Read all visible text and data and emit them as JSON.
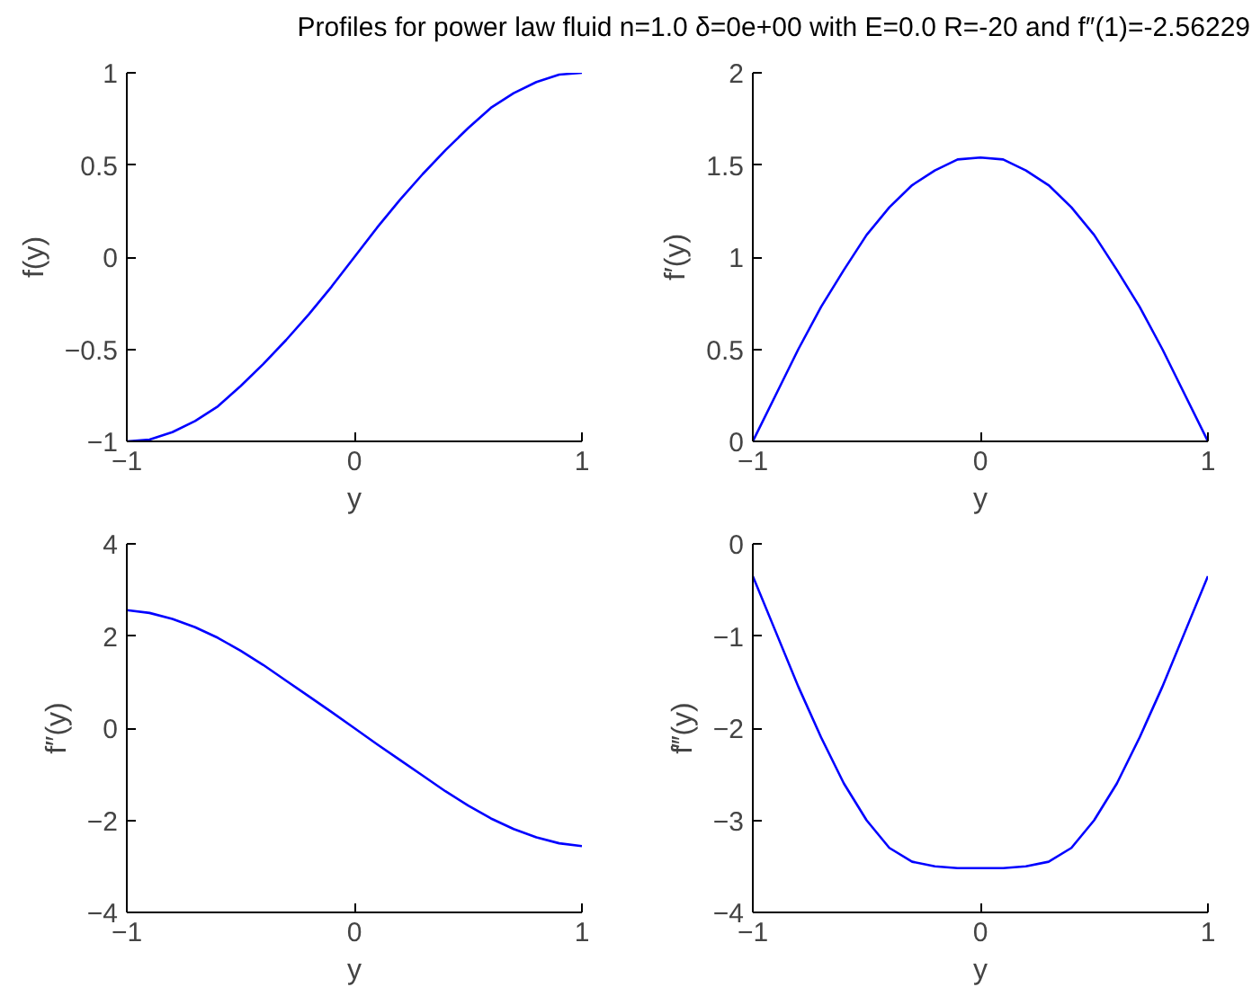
{
  "chart_data": [
    {
      "type": "line",
      "title": "Profiles for power law fluid n=1.0 δ=0e+00 with E=0.0 R=-20 and f″(1)=-2.56229",
      "xlabel": "y",
      "ylabel": "f(y)",
      "x": [
        -1,
        -0.9,
        -0.8,
        -0.7,
        -0.6,
        -0.5,
        -0.4,
        -0.3,
        -0.2,
        -0.1,
        0,
        0.1,
        0.2,
        0.3,
        0.4,
        0.5,
        0.6,
        0.7,
        0.8,
        0.9,
        1
      ],
      "xlim": [
        -1,
        1
      ],
      "xticks": [
        -1,
        0,
        1
      ],
      "ylim": [
        -1,
        1
      ],
      "yticks": [
        -1,
        -0.5,
        0,
        0.5,
        1
      ],
      "grid": false,
      "series": [
        {
          "color": "#0000ff",
          "values": [
            -1,
            -0.99,
            -0.95,
            -0.89,
            -0.81,
            -0.7,
            -0.58,
            -0.45,
            -0.31,
            -0.16,
            0,
            0.16,
            0.31,
            0.45,
            0.58,
            0.7,
            0.81,
            0.89,
            0.95,
            0.99,
            1
          ]
        }
      ]
    },
    {
      "type": "line",
      "xlabel": "y",
      "ylabel": "f′(y)",
      "x": [
        -1,
        -0.9,
        -0.8,
        -0.7,
        -0.6,
        -0.5,
        -0.4,
        -0.3,
        -0.2,
        -0.1,
        0,
        0.1,
        0.2,
        0.3,
        0.4,
        0.5,
        0.6,
        0.7,
        0.8,
        0.9,
        1
      ],
      "xlim": [
        -1,
        1
      ],
      "xticks": [
        -1,
        0,
        1
      ],
      "ylim": [
        0,
        2
      ],
      "yticks": [
        0,
        0.5,
        1,
        1.5,
        2
      ],
      "grid": false,
      "series": [
        {
          "color": "#0000ff",
          "values": [
            0,
            0.25,
            0.5,
            0.73,
            0.93,
            1.12,
            1.27,
            1.39,
            1.47,
            1.53,
            1.54,
            1.53,
            1.47,
            1.39,
            1.27,
            1.12,
            0.93,
            0.73,
            0.5,
            0.25,
            0
          ]
        }
      ]
    },
    {
      "type": "line",
      "xlabel": "y",
      "ylabel": "f″(y)",
      "x": [
        -1,
        -0.9,
        -0.8,
        -0.7,
        -0.6,
        -0.5,
        -0.4,
        -0.3,
        -0.2,
        -0.1,
        0,
        0.1,
        0.2,
        0.3,
        0.4,
        0.5,
        0.6,
        0.7,
        0.8,
        0.9,
        1
      ],
      "xlim": [
        -1,
        1
      ],
      "xticks": [
        -1,
        0,
        1
      ],
      "ylim": [
        -4,
        4
      ],
      "yticks": [
        -4,
        -2,
        0,
        2,
        4
      ],
      "grid": false,
      "series": [
        {
          "color": "#0000ff",
          "values": [
            2.56,
            2.5,
            2.37,
            2.19,
            1.96,
            1.68,
            1.37,
            1.03,
            0.69,
            0.35,
            0,
            -0.35,
            -0.69,
            -1.03,
            -1.37,
            -1.68,
            -1.96,
            -2.19,
            -2.37,
            -2.5,
            -2.56
          ]
        }
      ]
    },
    {
      "type": "line",
      "xlabel": "y",
      "ylabel": "f‴(y)",
      "x": [
        -1,
        -0.9,
        -0.8,
        -0.7,
        -0.6,
        -0.5,
        -0.4,
        -0.3,
        -0.2,
        -0.1,
        0,
        0.1,
        0.2,
        0.3,
        0.4,
        0.5,
        0.6,
        0.7,
        0.8,
        0.9,
        1
      ],
      "xlim": [
        -1,
        1
      ],
      "xticks": [
        -1,
        0,
        1
      ],
      "ylim": [
        -4,
        0
      ],
      "yticks": [
        -4,
        -3,
        -2,
        -1,
        0
      ],
      "grid": false,
      "series": [
        {
          "color": "#0000ff",
          "values": [
            -0.35,
            -0.95,
            -1.55,
            -2.1,
            -2.6,
            -3.0,
            -3.3,
            -3.45,
            -3.5,
            -3.52,
            -3.52,
            -3.52,
            -3.5,
            -3.45,
            -3.3,
            -3.0,
            -2.6,
            -2.1,
            -1.55,
            -0.95,
            -0.35
          ]
        }
      ]
    }
  ]
}
